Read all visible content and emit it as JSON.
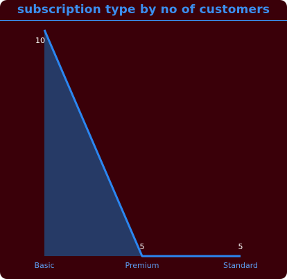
{
  "chart_data": {
    "type": "area",
    "title": "subscription type by no of customers",
    "xlabel": "",
    "ylabel": "",
    "categories": [
      "Basic",
      "Premium",
      "Standard"
    ],
    "values": [
      10,
      5,
      5
    ],
    "data_labels": [
      "10",
      "5",
      "5"
    ],
    "ylim": [
      5,
      10
    ],
    "grid": false,
    "colors": {
      "background": "#3a0009",
      "title": "#3b8ff0",
      "line": "#2b86f0",
      "fill": "#263a66",
      "tick_label": "#5d9cf0",
      "data_label": "#ffffff"
    }
  }
}
